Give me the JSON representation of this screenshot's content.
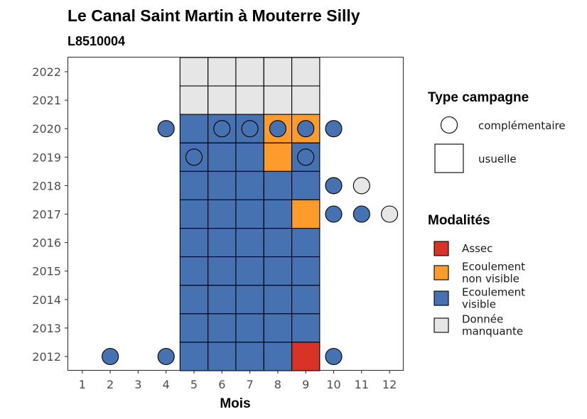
{
  "colors": {
    "Assec": "#d93328",
    "Ecoulement non visible": "#fe9b2d",
    "Ecoulement visible": "#4672b2",
    "Donnée manquante": "#e6e6e6"
  },
  "chart_data": {
    "type": "heatmap",
    "title": "Le Canal Saint Martin à Mouterre Silly",
    "subtitle": "L8510004",
    "xlabel": "Mois",
    "ylabel": "",
    "x_ticks": [
      "1",
      "2",
      "3",
      "4",
      "5",
      "6",
      "7",
      "8",
      "9",
      "10",
      "11",
      "12"
    ],
    "y_ticks": [
      "2012",
      "2013",
      "2014",
      "2015",
      "2016",
      "2017",
      "2018",
      "2019",
      "2020",
      "2021",
      "2022"
    ],
    "grid": false,
    "legend_position": "right",
    "legend": {
      "campagne_title": "Type campagne",
      "campagne_items": [
        {
          "shape": "circle",
          "label": "complémentaire"
        },
        {
          "shape": "square",
          "label": "usuelle"
        }
      ],
      "modalites_title": "Modalités",
      "modalites_items": [
        {
          "key": "Assec",
          "lines": [
            "Assec"
          ]
        },
        {
          "key": "Ecoulement non visible",
          "lines": [
            "Ecoulement",
            "non visible"
          ]
        },
        {
          "key": "Ecoulement visible",
          "lines": [
            "Ecoulement",
            "visible"
          ]
        },
        {
          "key": "Donnée manquante",
          "lines": [
            "Donnée",
            "manquante"
          ]
        }
      ]
    },
    "usuelle": [
      {
        "year": 2022,
        "month": 5,
        "modalite": "Donnée manquante"
      },
      {
        "year": 2022,
        "month": 6,
        "modalite": "Donnée manquante"
      },
      {
        "year": 2022,
        "month": 7,
        "modalite": "Donnée manquante"
      },
      {
        "year": 2022,
        "month": 8,
        "modalite": "Donnée manquante"
      },
      {
        "year": 2022,
        "month": 9,
        "modalite": "Donnée manquante"
      },
      {
        "year": 2021,
        "month": 5,
        "modalite": "Donnée manquante"
      },
      {
        "year": 2021,
        "month": 6,
        "modalite": "Donnée manquante"
      },
      {
        "year": 2021,
        "month": 7,
        "modalite": "Donnée manquante"
      },
      {
        "year": 2021,
        "month": 8,
        "modalite": "Donnée manquante"
      },
      {
        "year": 2021,
        "month": 9,
        "modalite": "Donnée manquante"
      },
      {
        "year": 2020,
        "month": 5,
        "modalite": "Ecoulement visible"
      },
      {
        "year": 2020,
        "month": 6,
        "modalite": "Ecoulement visible"
      },
      {
        "year": 2020,
        "month": 7,
        "modalite": "Ecoulement visible"
      },
      {
        "year": 2020,
        "month": 8,
        "modalite": "Ecoulement non visible"
      },
      {
        "year": 2020,
        "month": 9,
        "modalite": "Ecoulement non visible"
      },
      {
        "year": 2019,
        "month": 5,
        "modalite": "Ecoulement visible"
      },
      {
        "year": 2019,
        "month": 6,
        "modalite": "Ecoulement visible"
      },
      {
        "year": 2019,
        "month": 7,
        "modalite": "Ecoulement visible"
      },
      {
        "year": 2019,
        "month": 8,
        "modalite": "Ecoulement non visible"
      },
      {
        "year": 2019,
        "month": 9,
        "modalite": "Ecoulement visible"
      },
      {
        "year": 2018,
        "month": 5,
        "modalite": "Ecoulement visible"
      },
      {
        "year": 2018,
        "month": 6,
        "modalite": "Ecoulement visible"
      },
      {
        "year": 2018,
        "month": 7,
        "modalite": "Ecoulement visible"
      },
      {
        "year": 2018,
        "month": 8,
        "modalite": "Ecoulement visible"
      },
      {
        "year": 2018,
        "month": 9,
        "modalite": "Ecoulement visible"
      },
      {
        "year": 2017,
        "month": 5,
        "modalite": "Ecoulement visible"
      },
      {
        "year": 2017,
        "month": 6,
        "modalite": "Ecoulement visible"
      },
      {
        "year": 2017,
        "month": 7,
        "modalite": "Ecoulement visible"
      },
      {
        "year": 2017,
        "month": 8,
        "modalite": "Ecoulement visible"
      },
      {
        "year": 2017,
        "month": 9,
        "modalite": "Ecoulement non visible"
      },
      {
        "year": 2016,
        "month": 5,
        "modalite": "Ecoulement visible"
      },
      {
        "year": 2016,
        "month": 6,
        "modalite": "Ecoulement visible"
      },
      {
        "year": 2016,
        "month": 7,
        "modalite": "Ecoulement visible"
      },
      {
        "year": 2016,
        "month": 8,
        "modalite": "Ecoulement visible"
      },
      {
        "year": 2016,
        "month": 9,
        "modalite": "Ecoulement visible"
      },
      {
        "year": 2015,
        "month": 5,
        "modalite": "Ecoulement visible"
      },
      {
        "year": 2015,
        "month": 6,
        "modalite": "Ecoulement visible"
      },
      {
        "year": 2015,
        "month": 7,
        "modalite": "Ecoulement visible"
      },
      {
        "year": 2015,
        "month": 8,
        "modalite": "Ecoulement visible"
      },
      {
        "year": 2015,
        "month": 9,
        "modalite": "Ecoulement visible"
      },
      {
        "year": 2014,
        "month": 5,
        "modalite": "Ecoulement visible"
      },
      {
        "year": 2014,
        "month": 6,
        "modalite": "Ecoulement visible"
      },
      {
        "year": 2014,
        "month": 7,
        "modalite": "Ecoulement visible"
      },
      {
        "year": 2014,
        "month": 8,
        "modalite": "Ecoulement visible"
      },
      {
        "year": 2014,
        "month": 9,
        "modalite": "Ecoulement visible"
      },
      {
        "year": 2013,
        "month": 5,
        "modalite": "Ecoulement visible"
      },
      {
        "year": 2013,
        "month": 6,
        "modalite": "Ecoulement visible"
      },
      {
        "year": 2013,
        "month": 7,
        "modalite": "Ecoulement visible"
      },
      {
        "year": 2013,
        "month": 8,
        "modalite": "Ecoulement visible"
      },
      {
        "year": 2013,
        "month": 9,
        "modalite": "Ecoulement visible"
      },
      {
        "year": 2012,
        "month": 5,
        "modalite": "Ecoulement visible"
      },
      {
        "year": 2012,
        "month": 6,
        "modalite": "Ecoulement visible"
      },
      {
        "year": 2012,
        "month": 7,
        "modalite": "Ecoulement visible"
      },
      {
        "year": 2012,
        "month": 8,
        "modalite": "Ecoulement visible"
      },
      {
        "year": 2012,
        "month": 9,
        "modalite": "Assec"
      }
    ],
    "complementaire": [
      {
        "year": 2020,
        "month": 4,
        "modalite": "Ecoulement visible"
      },
      {
        "year": 2020,
        "month": 6,
        "modalite": "Ecoulement visible"
      },
      {
        "year": 2020,
        "month": 7,
        "modalite": "Ecoulement visible"
      },
      {
        "year": 2020,
        "month": 8,
        "modalite": "Ecoulement visible"
      },
      {
        "year": 2020,
        "month": 9,
        "modalite": "Ecoulement visible"
      },
      {
        "year": 2020,
        "month": 10,
        "modalite": "Ecoulement visible"
      },
      {
        "year": 2019,
        "month": 5,
        "modalite": "Ecoulement visible"
      },
      {
        "year": 2019,
        "month": 9,
        "modalite": "Ecoulement visible"
      },
      {
        "year": 2018,
        "month": 10,
        "modalite": "Ecoulement visible"
      },
      {
        "year": 2018,
        "month": 11,
        "modalite": "Donnée manquante"
      },
      {
        "year": 2017,
        "month": 10,
        "modalite": "Ecoulement visible"
      },
      {
        "year": 2017,
        "month": 11,
        "modalite": "Ecoulement visible"
      },
      {
        "year": 2017,
        "month": 12,
        "modalite": "Donnée manquante"
      },
      {
        "year": 2012,
        "month": 2,
        "modalite": "Ecoulement visible"
      },
      {
        "year": 2012,
        "month": 4,
        "modalite": "Ecoulement visible"
      },
      {
        "year": 2012,
        "month": 10,
        "modalite": "Ecoulement visible"
      }
    ]
  }
}
